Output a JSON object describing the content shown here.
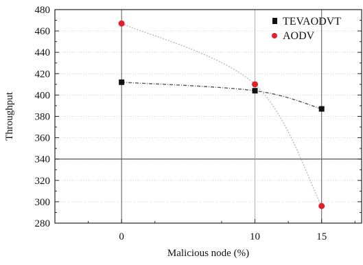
{
  "chart_data": {
    "type": "line",
    "xlabel": "Malicious node (%)",
    "ylabel": "Throughput",
    "x": [
      0,
      10,
      15
    ],
    "xticks": [
      0,
      10,
      15
    ],
    "xlim": [
      -5,
      18
    ],
    "ylim": [
      280,
      480
    ],
    "yticks": [
      280,
      300,
      320,
      340,
      360,
      380,
      400,
      420,
      440,
      460,
      480
    ],
    "grid": true,
    "legend_position": "top-right",
    "series": [
      {
        "name": "TEVAODVT",
        "values": [
          412,
          404,
          387
        ],
        "color": "#111111",
        "marker": "square",
        "line_color": "#555555"
      },
      {
        "name": "AODV",
        "values": [
          467,
          410,
          296
        ],
        "color": "#e0202a",
        "marker": "circle",
        "line_color": "#bbbbbb"
      }
    ]
  }
}
